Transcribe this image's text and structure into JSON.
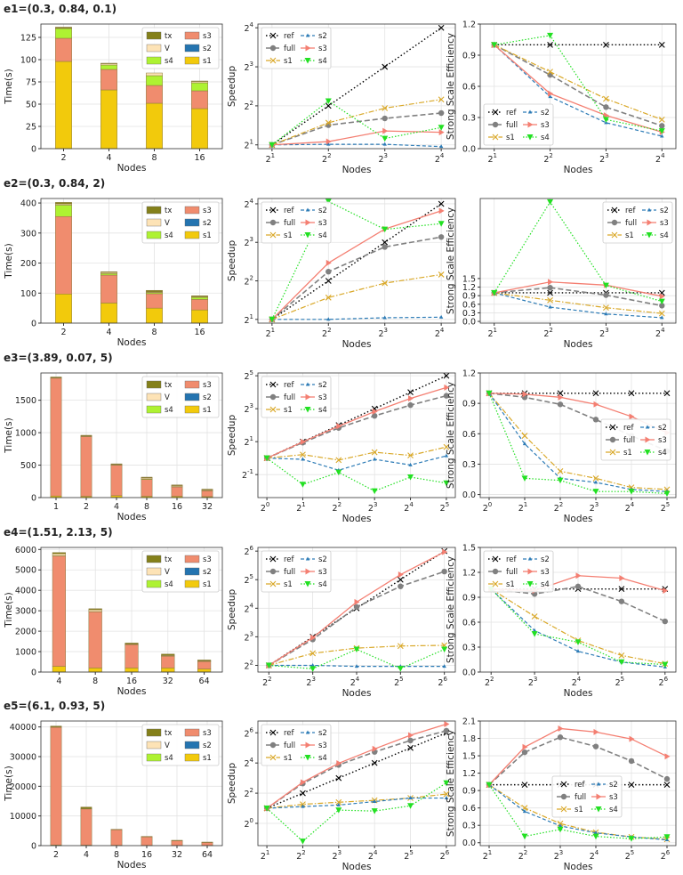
{
  "colors": {
    "s1_bar": "#f2ca0c",
    "s2_bar": "#2474b0",
    "s3_bar": "#f08c6e",
    "s4_bar": "#aef232",
    "V_bar": "#fde3b6",
    "tx_bar": "#84801a",
    "ref": "#000000",
    "full": "#808080",
    "s1": "#d9a828",
    "s2": "#2c7bb6",
    "s3": "#f47f72",
    "s4": "#22e022"
  },
  "legend_bar_order": [
    "tx",
    "s3",
    "V",
    "s2",
    "s4",
    "s1"
  ],
  "legend_line_order": [
    "ref",
    "s2",
    "full",
    "s3",
    "s1",
    "s4"
  ],
  "chart_data": [
    {
      "title": "e1=(0.3, 0.84, 0.1)",
      "nodes": [
        2,
        4,
        8,
        16
      ],
      "time": {
        "type": "bar",
        "stacked": true,
        "xlabel": "Nodes",
        "ylabel": "Time(s)",
        "xticks": [
          "2",
          "4",
          "8",
          "16"
        ],
        "ylim": [
          0,
          140
        ],
        "yticks": [
          0,
          25,
          50,
          75,
          100,
          125
        ],
        "legend": "top-right",
        "grid": true,
        "stack": {
          "s1": [
            98,
            66,
            51,
            45
          ],
          "s2": [
            0,
            0,
            0,
            0
          ],
          "s3": [
            26,
            23,
            20,
            20
          ],
          "s4": [
            11,
            5,
            11,
            9
          ],
          "V": [
            0.5,
            1.5,
            3,
            1.5
          ],
          "tx": [
            1,
            0.5,
            0,
            0.5
          ]
        }
      },
      "speedup": {
        "type": "line",
        "xlabel": "Nodes",
        "ylabel": "Speedup",
        "xscale": "log2",
        "yscale": "log2",
        "xticks_exp": [
          1,
          2,
          3,
          4
        ],
        "yticks_exp": [
          1,
          2,
          3,
          4
        ],
        "ylim": [
          1.87,
          17.1
        ],
        "legend": "top-left",
        "grid": true,
        "series": {
          "ref": [
            2,
            4,
            8,
            16
          ],
          "full": [
            2,
            2.84,
            3.2,
            3.52
          ],
          "s1": [
            2,
            2.96,
            3.84,
            4.48
          ],
          "s2": [
            2,
            2.02,
            2.02,
            1.94
          ],
          "s3": [
            2,
            2.12,
            2.56,
            2.5
          ],
          "s4": [
            2,
            4.36,
            2.24,
            2.72
          ]
        }
      },
      "efficiency": {
        "type": "line",
        "xlabel": "Nodes",
        "ylabel": "Strong Scale Efficiency",
        "xscale": "log2",
        "xticks_exp": [
          1,
          2,
          3,
          4
        ],
        "ylim": [
          0,
          1.2
        ],
        "yticks": [
          "0.0",
          "0.3",
          "0.6",
          "0.9",
          "1.2"
        ],
        "legend": "lower-left",
        "grid": true,
        "series": {
          "ref": [
            1,
            1,
            1,
            1
          ],
          "full": [
            1,
            0.71,
            0.4,
            0.22
          ],
          "s1": [
            1,
            0.74,
            0.48,
            0.28
          ],
          "s2": [
            1,
            0.5,
            0.25,
            0.12
          ],
          "s3": [
            1,
            0.53,
            0.32,
            0.16
          ],
          "s4": [
            1,
            1.09,
            0.28,
            0.17
          ]
        }
      }
    },
    {
      "title": "e2=(0.3, 0.84, 2)",
      "nodes": [
        2,
        4,
        8,
        16
      ],
      "time": {
        "type": "bar",
        "stacked": true,
        "xlabel": "Nodes",
        "ylabel": "Time(s)",
        "xticks": [
          "2",
          "4",
          "8",
          "16"
        ],
        "ylim": [
          0,
          415
        ],
        "yticks": [
          0,
          100,
          200,
          300,
          400
        ],
        "legend": "top-right",
        "grid": true,
        "stack": {
          "s1": [
            97,
            67,
            50,
            44
          ],
          "s2": [
            0,
            0,
            0,
            0
          ],
          "s3": [
            258,
            93,
            48,
            35
          ],
          "s4": [
            38,
            5,
            4,
            7
          ],
          "V": [
            4,
            4,
            2,
            2
          ],
          "tx": [
            5,
            2,
            5,
            3
          ]
        }
      },
      "speedup": {
        "type": "line",
        "xlabel": "Nodes",
        "ylabel": "Speedup",
        "xscale": "log2",
        "yscale": "log2",
        "xticks_exp": [
          1,
          2,
          3,
          4
        ],
        "yticks_exp": [
          1,
          2,
          3,
          4
        ],
        "ylim": [
          1.87,
          17.6
        ],
        "legend": "top-left",
        "grid": true,
        "series": {
          "ref": [
            2,
            4,
            8,
            16
          ],
          "full": [
            2,
            4.72,
            7.36,
            8.8
          ],
          "s1": [
            2,
            2.96,
            3.84,
            4.48
          ],
          "s2": [
            2,
            2,
            2.06,
            2.08
          ],
          "s3": [
            2,
            5.52,
            10.16,
            14.1
          ],
          "s4": [
            2,
            16.7,
            10.1,
            11.2
          ]
        }
      },
      "efficiency": {
        "type": "line",
        "xlabel": "Nodes",
        "ylabel": "Strong Scale Efficiency",
        "xscale": "log2",
        "xticks_exp": [
          1,
          2,
          3,
          4
        ],
        "ylim": [
          -0.06,
          4.3
        ],
        "yticks": [
          "0.0",
          "0.3",
          "0.6",
          "0.9",
          "1.2",
          "1.5"
        ],
        "legend": "top-right",
        "grid": true,
        "series": {
          "ref": [
            1,
            1,
            1,
            1
          ],
          "full": [
            1,
            1.18,
            0.92,
            0.55
          ],
          "s1": [
            1,
            0.74,
            0.48,
            0.28
          ],
          "s2": [
            1,
            0.5,
            0.26,
            0.13
          ],
          "s3": [
            1,
            1.38,
            1.27,
            0.88
          ],
          "s4": [
            1,
            4.18,
            1.26,
            0.7
          ]
        }
      }
    },
    {
      "title": "e3=(3.89, 0.07, 5)",
      "nodes": [
        1,
        2,
        4,
        8,
        16,
        32
      ],
      "time": {
        "type": "bar",
        "stacked": true,
        "xlabel": "Nodes",
        "ylabel": "Time(s)",
        "xticks": [
          "1",
          "2",
          "4",
          "8",
          "16",
          "32"
        ],
        "ylim": [
          0,
          1920
        ],
        "yticks": [
          0,
          500,
          1000,
          1500
        ],
        "legend": "top-right",
        "grid": true,
        "stack": {
          "s1": [
            25,
            20,
            30,
            20,
            20,
            15
          ],
          "s2": [
            0,
            0,
            0,
            0,
            0,
            0
          ],
          "s3": [
            1815,
            920,
            470,
            260,
            145,
            90
          ],
          "s4": [
            5,
            5,
            5,
            10,
            5,
            5
          ],
          "V": [
            3,
            5,
            5,
            15,
            15,
            10
          ],
          "tx": [
            10,
            10,
            10,
            10,
            10,
            10
          ]
        }
      },
      "speedup": {
        "type": "line",
        "xlabel": "Nodes",
        "ylabel": "Speedup",
        "xscale": "log2",
        "yscale": "log2",
        "xticks_exp": [
          0,
          1,
          2,
          3,
          4,
          5
        ],
        "yticks_exp": [
          -1,
          1,
          3,
          5
        ],
        "ylim": [
          0.19,
          36
        ],
        "legend": "top-left",
        "grid": true,
        "series": {
          "ref": [
            1,
            2,
            4,
            8,
            16,
            32
          ],
          "full": [
            1,
            1.92,
            3.56,
            5.92,
            9.3,
            13.8
          ],
          "s1": [
            1,
            1.16,
            0.92,
            1.28,
            1.12,
            1.6
          ],
          "s2": [
            1,
            0.95,
            0.6,
            0.95,
            0.75,
            1.1
          ],
          "s3": [
            1,
            1.98,
            3.84,
            7.1,
            12.3,
            19.5
          ],
          "s4": [
            1,
            0.33,
            0.55,
            0.25,
            0.45,
            0.35
          ]
        }
      },
      "efficiency": {
        "type": "line",
        "xlabel": "Nodes",
        "ylabel": "Strong Scale Efficiency",
        "xscale": "log2",
        "xticks_exp": [
          0,
          1,
          2,
          3,
          4,
          5
        ],
        "ylim": [
          -0.03,
          1.2
        ],
        "yticks": [
          "0.0",
          "0.3",
          "0.6",
          "0.9",
          "1.2"
        ],
        "legend": "center-right",
        "grid": true,
        "series": {
          "ref": [
            1,
            1,
            1,
            1,
            1,
            1
          ],
          "full": [
            1,
            0.96,
            0.89,
            0.74,
            0.58,
            0.43
          ],
          "s1": [
            1,
            0.58,
            0.23,
            0.16,
            0.07,
            0.05
          ],
          "s2": [
            1,
            0.5,
            0.16,
            0.12,
            0.05,
            0.03
          ],
          "s3": [
            1,
            0.99,
            0.96,
            0.89,
            0.77,
            0.61
          ],
          "s4": [
            1,
            0.16,
            0.14,
            0.03,
            0.03,
            0.01
          ]
        }
      }
    },
    {
      "title": "e4=(1.51, 2.13, 5)",
      "nodes": [
        4,
        8,
        16,
        32,
        64
      ],
      "time": {
        "type": "bar",
        "stacked": true,
        "xlabel": "Nodes",
        "ylabel": "Time(s)",
        "xticks": [
          "4",
          "8",
          "16",
          "32",
          "64"
        ],
        "ylim": [
          0,
          6100
        ],
        "yticks": [
          0,
          1000,
          2000,
          3000,
          4000,
          5000,
          6000
        ],
        "legend": "top-right",
        "grid": true,
        "stack": {
          "s1": [
            280,
            200,
            200,
            200,
            150
          ],
          "s2": [
            0,
            0,
            0,
            0,
            0
          ],
          "s3": [
            5400,
            2750,
            1140,
            580,
            370
          ],
          "s4": [
            10,
            10,
            10,
            10,
            10
          ],
          "V": [
            100,
            90,
            20,
            30,
            20
          ],
          "tx": [
            60,
            50,
            50,
            60,
            40
          ]
        }
      },
      "speedup": {
        "type": "line",
        "xlabel": "Nodes",
        "ylabel": "Speedup",
        "xscale": "log2",
        "yscale": "log2",
        "xticks_exp": [
          2,
          3,
          4,
          5,
          6
        ],
        "yticks_exp": [
          2,
          3,
          4,
          5,
          6
        ],
        "ylim": [
          3.4,
          70
        ],
        "legend": "top-left",
        "grid": true,
        "series": {
          "ref": [
            4,
            8,
            16,
            32,
            64
          ],
          "full": [
            4,
            7.5,
            16.5,
            27.2,
            39
          ],
          "s1": [
            4,
            5.36,
            6.08,
            6.4,
            6.5
          ],
          "s2": [
            4,
            4,
            3.9,
            3.9,
            3.9
          ],
          "s3": [
            4,
            7.84,
            18.6,
            36.2,
            62.7
          ],
          "s4": [
            4,
            3.68,
            5.9,
            3.7,
            5.9
          ]
        }
      },
      "efficiency": {
        "type": "line",
        "xlabel": "Nodes",
        "ylabel": "Strong Scale Efficiency",
        "xscale": "log2",
        "xticks_exp": [
          2,
          3,
          4,
          5,
          6
        ],
        "ylim": [
          0,
          1.5
        ],
        "yticks": [
          "0.0",
          "0.3",
          "0.6",
          "0.9",
          "1.2",
          "1.5"
        ],
        "legend": "top-left",
        "grid": true,
        "series": {
          "ref": [
            1,
            1,
            1,
            1,
            1
          ],
          "full": [
            1,
            0.94,
            1.03,
            0.85,
            0.61
          ],
          "s1": [
            1,
            0.67,
            0.38,
            0.2,
            0.1
          ],
          "s2": [
            1,
            0.5,
            0.25,
            0.12,
            0.06
          ],
          "s3": [
            1,
            0.98,
            1.16,
            1.13,
            0.98
          ],
          "s4": [
            1,
            0.46,
            0.36,
            0.12,
            0.09
          ]
        }
      }
    },
    {
      "title": "e5=(6.1, 0.93, 5)",
      "nodes": [
        2,
        4,
        8,
        16,
        32,
        64
      ],
      "time": {
        "type": "bar",
        "stacked": true,
        "xlabel": "Nodes",
        "ylabel": "Time(s)",
        "xticks": [
          "2",
          "4",
          "8",
          "16",
          "32",
          "64"
        ],
        "ylim": [
          0,
          42000
        ],
        "yticks": [
          0,
          10000,
          20000,
          30000,
          40000
        ],
        "legend": "top-right",
        "grid": true,
        "stack": {
          "s1": [
            200,
            150,
            100,
            80,
            60,
            50
          ],
          "s2": [
            0,
            0,
            0,
            0,
            0,
            0
          ],
          "s3": [
            39700,
            12200,
            5250,
            2850,
            1600,
            1030
          ],
          "s4": [
            50,
            0,
            0,
            0,
            0,
            0
          ],
          "V": [
            50,
            100,
            50,
            70,
            40,
            20
          ],
          "tx": [
            300,
            550,
            100,
            100,
            100,
            100
          ]
        }
      },
      "speedup": {
        "type": "line",
        "xlabel": "Nodes",
        "ylabel": "Speedup",
        "xscale": "log2",
        "yscale": "log2",
        "xticks_exp": [
          1,
          2,
          3,
          4,
          5,
          6
        ],
        "yticks_exp": [
          0,
          2,
          4,
          6
        ],
        "ylim": [
          0.36,
          110
        ],
        "legend": "top-left",
        "grid": true,
        "series": {
          "ref": [
            2,
            4,
            8,
            16,
            32,
            64
          ],
          "full": [
            2,
            6.24,
            14.6,
            26.6,
            45,
            70.4
          ],
          "s1": [
            2,
            2.4,
            2.64,
            2.88,
            3.2,
            3.84
          ],
          "s2": [
            2,
            2.16,
            2.32,
            2.72,
            3.2,
            3.2
          ],
          "s3": [
            2,
            6.6,
            15.8,
            30.6,
            57.3,
            95.4
          ],
          "s4": [
            2,
            0.44,
            1.84,
            1.76,
            2.24,
            6.4
          ]
        }
      },
      "efficiency": {
        "type": "line",
        "xlabel": "Nodes",
        "ylabel": "Strong Scale Efficiency",
        "xscale": "log2",
        "xticks_exp": [
          1,
          2,
          3,
          4,
          5,
          6
        ],
        "ylim": [
          -0.05,
          2.1
        ],
        "yticks": [
          "0.0",
          "0.3",
          "0.6",
          "0.9",
          "1.2",
          "1.5",
          "1.8",
          "2.1"
        ],
        "legend": "center",
        "grid": true,
        "series": {
          "ref": [
            1,
            1,
            1,
            1,
            1,
            1
          ],
          "full": [
            1,
            1.56,
            1.82,
            1.66,
            1.41,
            1.1
          ],
          "s1": [
            1,
            0.6,
            0.33,
            0.18,
            0.1,
            0.06
          ],
          "s2": [
            1,
            0.54,
            0.29,
            0.17,
            0.1,
            0.05
          ],
          "s3": [
            1,
            1.65,
            1.97,
            1.91,
            1.79,
            1.49
          ],
          "s4": [
            1,
            0.11,
            0.23,
            0.11,
            0.07,
            0.1
          ]
        }
      }
    }
  ]
}
